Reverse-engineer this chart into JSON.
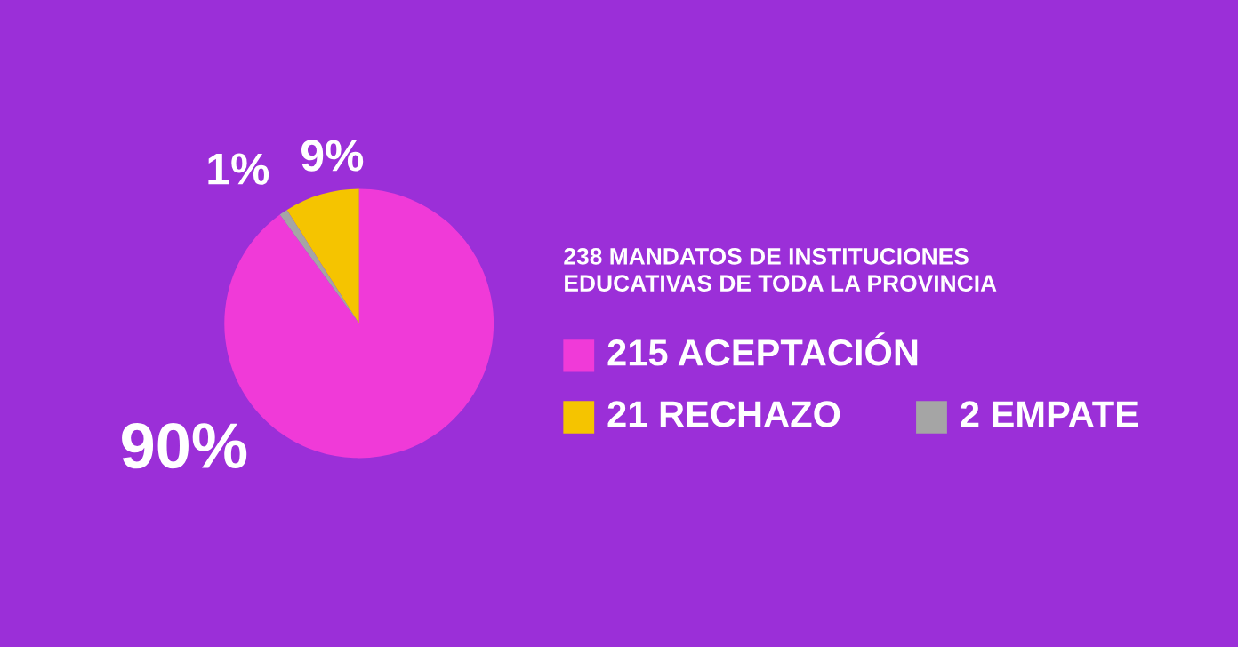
{
  "chart_data": {
    "type": "pie",
    "title": "238 MANDATOS DE INSTITUCIONES\nEDUCATIVAS DE TODA LA PROVINCIA",
    "categories": [
      "215 ACEPTACIÓN",
      "21 RECHAZO",
      "2 EMPATE"
    ],
    "values": [
      90,
      9,
      1
    ],
    "value_labels": [
      "90%",
      "9%",
      "1%"
    ],
    "colors": [
      "#f03ad8",
      "#f5c400",
      "#a5a5a5"
    ],
    "legend": "right"
  }
}
